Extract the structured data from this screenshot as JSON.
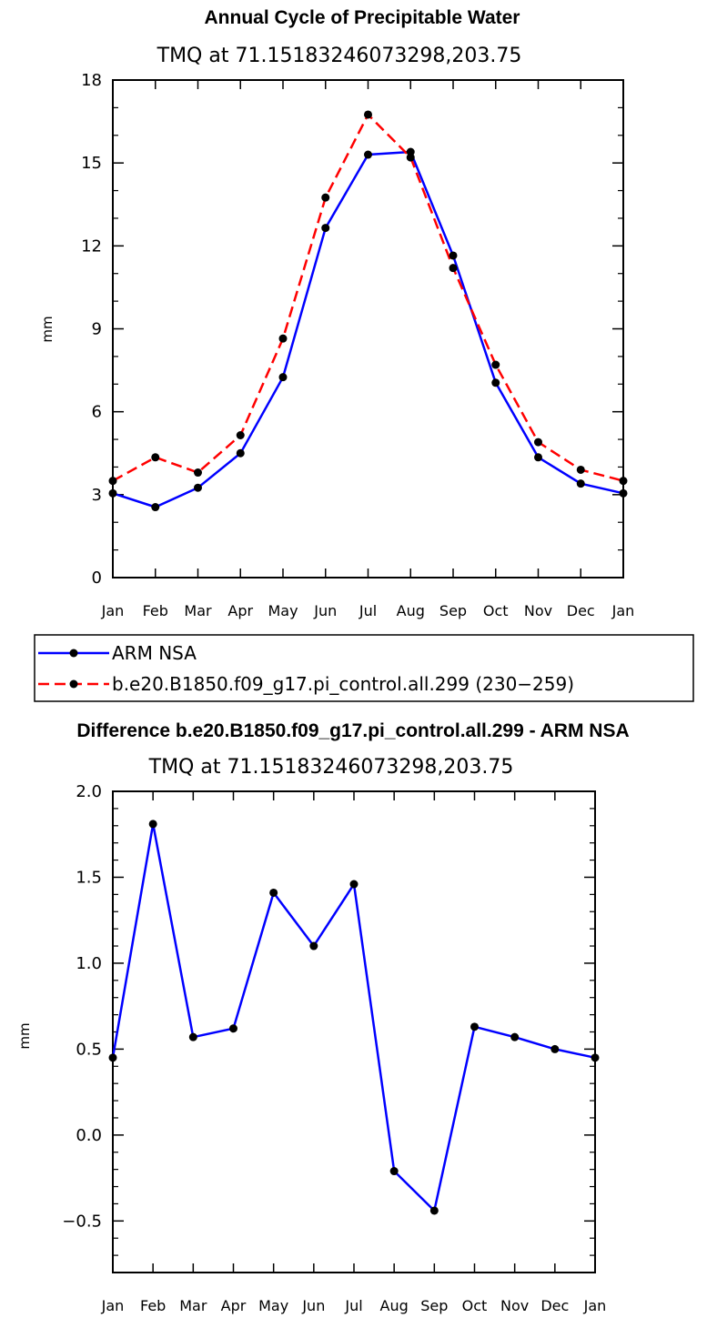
{
  "chart_data": [
    {
      "type": "line",
      "title": "Annual Cycle of Precipitable Water",
      "subtitle": "TMQ at 71.15183246073298,203.75",
      "xlabel": "",
      "ylabel": "mm",
      "categories": [
        "Jan",
        "Feb",
        "Mar",
        "Apr",
        "May",
        "Jun",
        "Jul",
        "Aug",
        "Sep",
        "Oct",
        "Nov",
        "Dec",
        "Jan"
      ],
      "ylim": [
        0,
        18
      ],
      "yticks": [
        "0",
        "3",
        "6",
        "9",
        "12",
        "15",
        "18"
      ],
      "series": [
        {
          "name": "ARM NSA",
          "color": "#0000ff",
          "dash": "solid",
          "values": [
            3.05,
            2.55,
            3.25,
            4.5,
            7.25,
            12.65,
            15.3,
            15.4,
            11.65,
            7.05,
            4.35,
            3.4,
            3.05
          ]
        },
        {
          "name": "b.e20.B1850.f09_g17.pi_control.all.299 (230−259)",
          "color": "#ff0000",
          "dash": "dashed",
          "values": [
            3.5,
            4.35,
            3.8,
            5.15,
            8.65,
            13.75,
            16.75,
            15.2,
            11.2,
            7.7,
            4.9,
            3.9,
            3.5
          ]
        }
      ]
    },
    {
      "type": "line",
      "title": "Difference b.e20.B1850.f09_g17.pi_control.all.299 - ARM NSA",
      "subtitle": "TMQ at 71.15183246073298,203.75",
      "xlabel": "",
      "ylabel": "mm",
      "categories": [
        "Jan",
        "Feb",
        "Mar",
        "Apr",
        "May",
        "Jun",
        "Jul",
        "Aug",
        "Sep",
        "Oct",
        "Nov",
        "Dec",
        "Jan"
      ],
      "ylim": [
        -0.8,
        2.0
      ],
      "yticks": [
        "−0.5",
        "0.0",
        "0.5",
        "1.0",
        "1.5",
        "2.0"
      ],
      "ytick_values": [
        -0.5,
        0.0,
        0.5,
        1.0,
        1.5,
        2.0
      ],
      "series": [
        {
          "name": "Difference",
          "color": "#0000ff",
          "dash": "solid",
          "values": [
            0.45,
            1.81,
            0.57,
            0.62,
            1.41,
            1.1,
            1.46,
            -0.21,
            -0.44,
            0.63,
            0.57,
            0.5,
            0.45
          ]
        }
      ]
    }
  ]
}
